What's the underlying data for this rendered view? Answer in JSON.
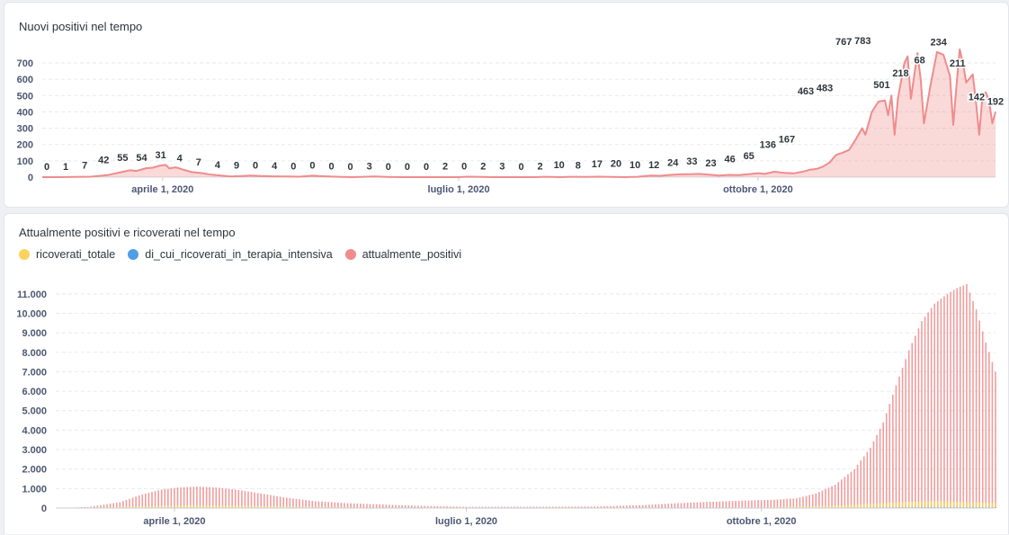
{
  "chart_data": [
    {
      "type": "area",
      "title": "Nuovi positivi nel tempo",
      "xlabel": "",
      "ylabel": "",
      "ylim": [
        0,
        700
      ],
      "yticks": [
        "0",
        "100",
        "200",
        "300",
        "400",
        "500",
        "600",
        "700"
      ],
      "ytick_values": [
        0,
        100,
        200,
        300,
        400,
        500,
        600,
        700
      ],
      "x_range": [
        "2020-02-24",
        "2020-12-13"
      ],
      "xticks": [
        {
          "date": "2020-04-01",
          "label": "aprile 1, 2020"
        },
        {
          "date": "2020-07-01",
          "label": "luglio 1, 2020"
        },
        {
          "date": "2020-10-01",
          "label": "ottobre 1, 2020"
        }
      ],
      "grid": true,
      "legend": "none",
      "color": "#ef8c8c",
      "series": [
        {
          "values": [
            [
              "2020-02-24",
              0
            ],
            [
              "2020-02-29",
              0
            ],
            [
              "2020-03-05",
              1
            ],
            [
              "2020-03-10",
              3
            ],
            [
              "2020-03-12",
              7
            ],
            [
              "2020-03-15",
              12
            ],
            [
              "2020-03-19",
              30
            ],
            [
              "2020-03-22",
              42
            ],
            [
              "2020-03-24",
              38
            ],
            [
              "2020-03-27",
              55
            ],
            [
              "2020-03-29",
              58
            ],
            [
              "2020-03-31",
              70
            ],
            [
              "2020-04-02",
              75
            ],
            [
              "2020-04-03",
              54
            ],
            [
              "2020-04-05",
              60
            ],
            [
              "2020-04-08",
              42
            ],
            [
              "2020-04-10",
              31
            ],
            [
              "2020-04-13",
              25
            ],
            [
              "2020-04-16",
              15
            ],
            [
              "2020-04-19",
              10
            ],
            [
              "2020-04-22",
              4
            ],
            [
              "2020-04-25",
              6
            ],
            [
              "2020-04-28",
              10
            ],
            [
              "2020-05-01",
              7
            ],
            [
              "2020-05-05",
              5
            ],
            [
              "2020-05-09",
              4
            ],
            [
              "2020-05-13",
              3
            ],
            [
              "2020-05-17",
              9
            ],
            [
              "2020-05-21",
              5
            ],
            [
              "2020-05-25",
              2
            ],
            [
              "2020-05-29",
              0
            ],
            [
              "2020-06-02",
              2
            ],
            [
              "2020-06-05",
              4
            ],
            [
              "2020-06-09",
              1
            ],
            [
              "2020-06-13",
              0
            ],
            [
              "2020-06-17",
              0
            ],
            [
              "2020-06-21",
              0
            ],
            [
              "2020-06-25",
              0
            ],
            [
              "2020-06-29",
              0
            ],
            [
              "2020-07-01",
              0
            ],
            [
              "2020-07-04",
              3
            ],
            [
              "2020-07-08",
              1
            ],
            [
              "2020-07-12",
              0
            ],
            [
              "2020-07-16",
              0
            ],
            [
              "2020-07-20",
              0
            ],
            [
              "2020-07-24",
              0
            ],
            [
              "2020-07-28",
              2
            ],
            [
              "2020-08-01",
              0
            ],
            [
              "2020-08-05",
              2
            ],
            [
              "2020-08-09",
              1
            ],
            [
              "2020-08-13",
              3
            ],
            [
              "2020-08-17",
              1
            ],
            [
              "2020-08-21",
              0
            ],
            [
              "2020-08-25",
              2
            ],
            [
              "2020-08-29",
              10
            ],
            [
              "2020-09-01",
              8
            ],
            [
              "2020-09-04",
              14
            ],
            [
              "2020-09-07",
              17
            ],
            [
              "2020-09-10",
              18
            ],
            [
              "2020-09-13",
              20
            ],
            [
              "2020-09-16",
              15
            ],
            [
              "2020-09-19",
              10
            ],
            [
              "2020-09-22",
              14
            ],
            [
              "2020-09-25",
              12
            ],
            [
              "2020-09-28",
              18
            ],
            [
              "2020-10-01",
              24
            ],
            [
              "2020-10-03",
              20
            ],
            [
              "2020-10-06",
              33
            ],
            [
              "2020-10-09",
              26
            ],
            [
              "2020-10-12",
              23
            ],
            [
              "2020-10-15",
              35
            ],
            [
              "2020-10-17",
              46
            ],
            [
              "2020-10-19",
              50
            ],
            [
              "2020-10-21",
              65
            ],
            [
              "2020-10-23",
              90
            ],
            [
              "2020-10-25",
              136
            ],
            [
              "2020-10-27",
              150
            ],
            [
              "2020-10-29",
              167
            ],
            [
              "2020-10-31",
              230
            ],
            [
              "2020-11-02",
              300
            ],
            [
              "2020-11-03",
              260
            ],
            [
              "2020-11-05",
              400
            ],
            [
              "2020-11-07",
              463
            ],
            [
              "2020-11-09",
              470
            ],
            [
              "2020-11-10",
              380
            ],
            [
              "2020-11-11",
              500
            ],
            [
              "2020-11-12",
              260
            ],
            [
              "2020-11-13",
              483
            ],
            [
              "2020-11-15",
              700
            ],
            [
              "2020-11-16",
              740
            ],
            [
              "2020-11-17",
              480
            ],
            [
              "2020-11-19",
              760
            ],
            [
              "2020-11-20",
              600
            ],
            [
              "2020-11-21",
              330
            ],
            [
              "2020-11-23",
              560
            ],
            [
              "2020-11-25",
              767
            ],
            [
              "2020-11-27",
              750
            ],
            [
              "2020-11-29",
              620
            ],
            [
              "2020-11-30",
              320
            ],
            [
              "2020-12-01",
              560
            ],
            [
              "2020-12-02",
              783
            ],
            [
              "2020-12-03",
              700
            ],
            [
              "2020-12-04",
              580
            ],
            [
              "2020-12-06",
              630
            ],
            [
              "2020-12-07",
              460
            ],
            [
              "2020-12-08",
              260
            ],
            [
              "2020-12-09",
              501
            ],
            [
              "2020-12-10",
              520
            ],
            [
              "2020-12-11",
              470
            ],
            [
              "2020-12-12",
              330
            ],
            [
              "2020-12-13",
              400
            ]
          ]
        }
      ],
      "data_labels": [
        "0",
        "1",
        "7",
        "42",
        "55",
        "54",
        "31",
        "4",
        "7",
        "4",
        "9",
        "0",
        "4",
        "0",
        "0",
        "0",
        "0",
        "3",
        "0",
        "0",
        "0",
        "2",
        "0",
        "2",
        "3",
        "0",
        "2",
        "10",
        "8",
        "17",
        "20",
        "10",
        "12",
        "24",
        "33",
        "23",
        "46",
        "65",
        "136",
        "167",
        "463",
        "483",
        "767",
        "783",
        "501",
        "218",
        "68",
        "234",
        "211",
        "142",
        "192"
      ]
    },
    {
      "type": "bar",
      "title": "Attualmente positivi e ricoverati nel tempo",
      "xlabel": "",
      "ylabel": "",
      "ylim": [
        0,
        11500
      ],
      "yticks": [
        "0",
        "1.000",
        "2.000",
        "3.000",
        "4.000",
        "5.000",
        "6.000",
        "7.000",
        "8.000",
        "9.000",
        "10.000",
        "11.000"
      ],
      "ytick_values": [
        0,
        1000,
        2000,
        3000,
        4000,
        5000,
        6000,
        7000,
        8000,
        9000,
        10000,
        11000
      ],
      "x_range": [
        "2020-02-24",
        "2020-12-13"
      ],
      "xticks": [
        {
          "date": "2020-04-01",
          "label": "aprile 1, 2020"
        },
        {
          "date": "2020-07-01",
          "label": "luglio 1, 2020"
        },
        {
          "date": "2020-10-01",
          "label": "ottobre 1, 2020"
        }
      ],
      "grid": true,
      "legend": "top-left",
      "series": [
        {
          "name": "ricoverati_totale",
          "color": "#f9d45c",
          "values": [
            [
              "2020-02-24",
              0
            ],
            [
              "2020-03-20",
              80
            ],
            [
              "2020-04-05",
              150
            ],
            [
              "2020-04-20",
              120
            ],
            [
              "2020-05-10",
              60
            ],
            [
              "2020-06-01",
              20
            ],
            [
              "2020-07-01",
              5
            ],
            [
              "2020-08-15",
              5
            ],
            [
              "2020-09-15",
              20
            ],
            [
              "2020-10-01",
              40
            ],
            [
              "2020-10-20",
              100
            ],
            [
              "2020-11-01",
              200
            ],
            [
              "2020-11-15",
              320
            ],
            [
              "2020-11-25",
              350
            ],
            [
              "2020-12-05",
              300
            ],
            [
              "2020-12-13",
              260
            ]
          ]
        },
        {
          "name": "di_cui_ricoverati_in_terapia_intensiva",
          "color": "#509ee3",
          "values": [
            [
              "2020-02-24",
              0
            ],
            [
              "2020-04-01",
              30
            ],
            [
              "2020-05-15",
              10
            ],
            [
              "2020-07-01",
              0
            ],
            [
              "2020-10-15",
              10
            ],
            [
              "2020-11-20",
              50
            ],
            [
              "2020-12-13",
              40
            ]
          ]
        },
        {
          "name": "attualmente_positivi",
          "color": "#ef8c8c",
          "values": [
            [
              "2020-02-24",
              0
            ],
            [
              "2020-03-05",
              50
            ],
            [
              "2020-03-15",
              300
            ],
            [
              "2020-03-22",
              700
            ],
            [
              "2020-03-28",
              950
            ],
            [
              "2020-04-02",
              1050
            ],
            [
              "2020-04-08",
              1100
            ],
            [
              "2020-04-14",
              1050
            ],
            [
              "2020-04-20",
              950
            ],
            [
              "2020-04-28",
              750
            ],
            [
              "2020-05-05",
              550
            ],
            [
              "2020-05-15",
              350
            ],
            [
              "2020-05-25",
              250
            ],
            [
              "2020-06-05",
              180
            ],
            [
              "2020-06-15",
              120
            ],
            [
              "2020-07-01",
              60
            ],
            [
              "2020-07-20",
              60
            ],
            [
              "2020-08-10",
              80
            ],
            [
              "2020-08-25",
              150
            ],
            [
              "2020-09-05",
              250
            ],
            [
              "2020-09-15",
              320
            ],
            [
              "2020-09-25",
              380
            ],
            [
              "2020-10-05",
              430
            ],
            [
              "2020-10-12",
              500
            ],
            [
              "2020-10-18",
              750
            ],
            [
              "2020-10-24",
              1200
            ],
            [
              "2020-10-30",
              2000
            ],
            [
              "2020-11-04",
              3100
            ],
            [
              "2020-11-08",
              4400
            ],
            [
              "2020-11-12",
              6300
            ],
            [
              "2020-11-16",
              8100
            ],
            [
              "2020-11-20",
              9600
            ],
            [
              "2020-11-24",
              10500
            ],
            [
              "2020-11-28",
              11000
            ],
            [
              "2020-12-01",
              11300
            ],
            [
              "2020-12-04",
              11500
            ],
            [
              "2020-12-07",
              10200
            ],
            [
              "2020-12-10",
              8500
            ],
            [
              "2020-12-13",
              7000
            ]
          ]
        }
      ]
    }
  ]
}
